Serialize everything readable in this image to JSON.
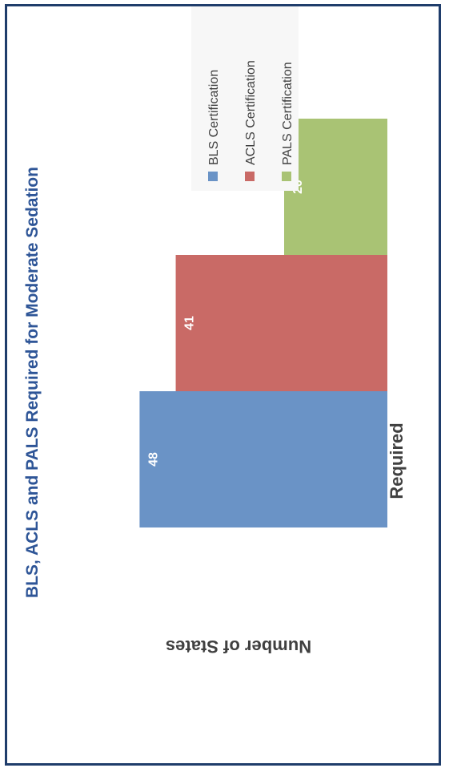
{
  "chart_data": {
    "type": "bar",
    "title": "BLS, ACLS and PALS Required for Moderate Sedation",
    "xlabel": "Required",
    "ylabel": "Number of States",
    "categories": [
      "Required"
    ],
    "series": [
      {
        "name": "BLS Certification",
        "values": [
          48
        ],
        "color": "#6A93C6"
      },
      {
        "name": "ACLS Certification",
        "values": [
          41
        ],
        "color": "#C96A66"
      },
      {
        "name": "PALS Certification",
        "values": [
          20
        ],
        "color": "#A9C374"
      }
    ],
    "legend_position": "top-right",
    "grid": false,
    "orientation": "rotated 90 degrees clockwise"
  }
}
